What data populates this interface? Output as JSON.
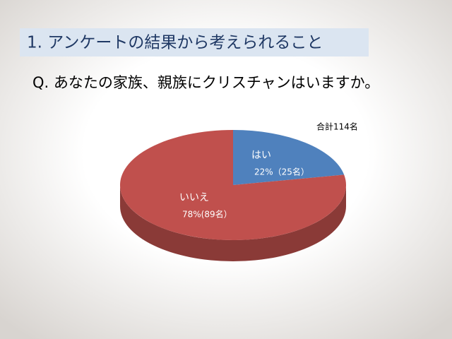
{
  "chart_data": {
    "type": "pie",
    "title": "1. アンケートの結果から考えられること",
    "subtitle": "Q. あなたの家族、親族にクリスチャンはいますか。",
    "annotation": "合計114名",
    "categories": [
      "はい",
      "いいえ"
    ],
    "values": [
      22,
      78
    ],
    "value_labels": [
      "22%（25名）",
      "78%(89名）"
    ],
    "colors": [
      "#4f81bd",
      "#c0504d"
    ]
  }
}
